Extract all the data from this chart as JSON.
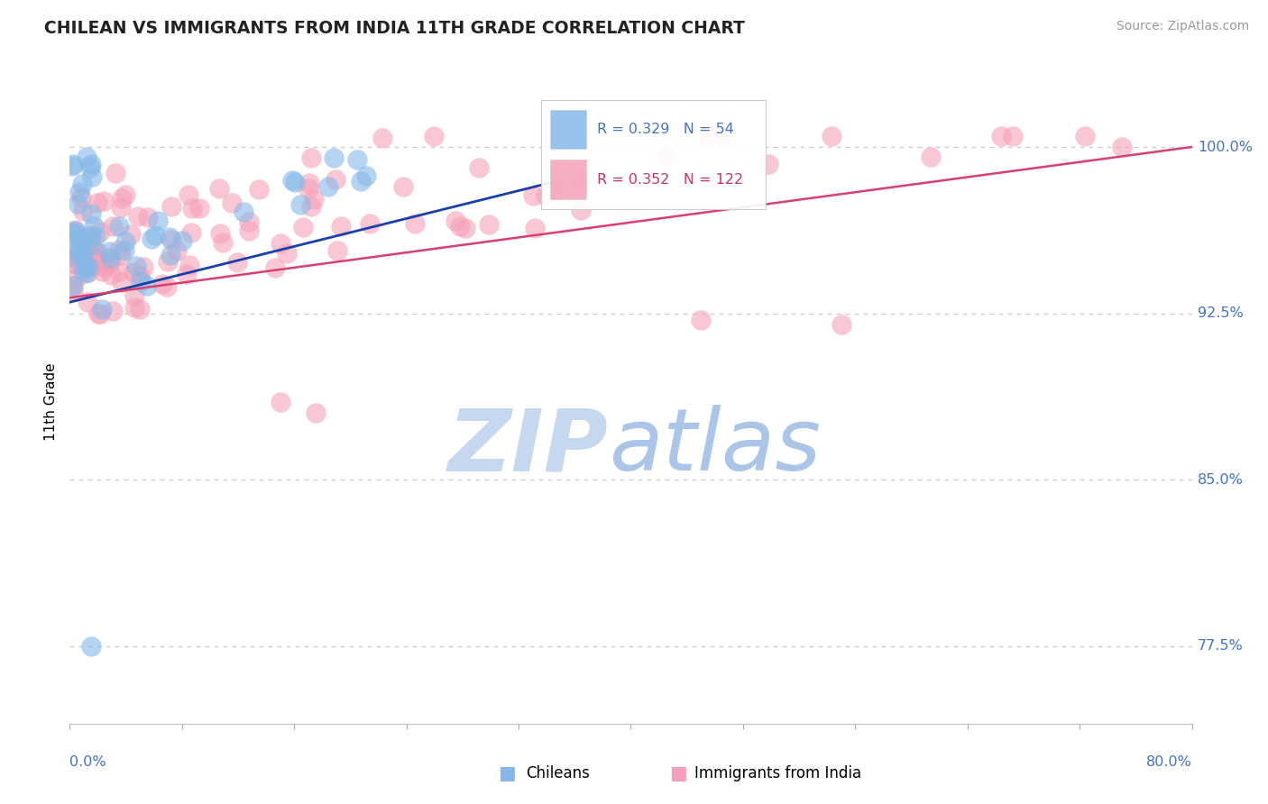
{
  "title": "CHILEAN VS IMMIGRANTS FROM INDIA 11TH GRADE CORRELATION CHART",
  "source": "Source: ZipAtlas.com",
  "ylabel": "11th Grade",
  "xlim": [
    0.0,
    80.0
  ],
  "ylim": [
    74.0,
    103.0
  ],
  "yticks": [
    77.5,
    85.0,
    92.5,
    100.0
  ],
  "ytick_labels": [
    "77.5%",
    "85.0%",
    "92.5%",
    "100.0%"
  ],
  "chilean_R": 0.329,
  "chilean_N": 54,
  "india_R": 0.352,
  "india_N": 122,
  "chilean_color": "#85b8e8",
  "india_color": "#f5a0b8",
  "chilean_line_color": "#1a3faa",
  "india_line_color": "#d94070",
  "watermark_zip_color": "#c5d8f0",
  "watermark_atlas_color": "#aac5e8",
  "legend_label_1": "Chileans",
  "legend_label_2": "Immigrants from India",
  "axis_label_color": "#4472c4",
  "grid_color": "#cccccc",
  "title_fontsize": 13.5,
  "source_fontsize": 10,
  "legend_r1_color": "#4472c4",
  "legend_r2_color": "#cc3366"
}
